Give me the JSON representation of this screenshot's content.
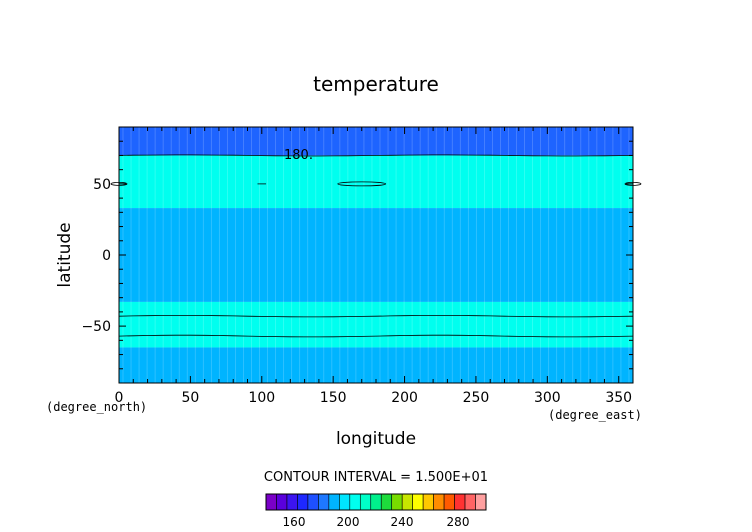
{
  "chart_data": {
    "type": "heatmap",
    "title": "temperature",
    "xlabel": "longitude",
    "ylabel": "latitude",
    "x_unit": "(degree_east)",
    "y_unit": "(degree_north)",
    "xlim": [
      0,
      360
    ],
    "ylim": [
      -90,
      90
    ],
    "x_ticks": [
      "0",
      "50",
      "100",
      "150",
      "200",
      "250",
      "300",
      "350"
    ],
    "y_ticks": [
      "50",
      "0",
      "-50"
    ],
    "bands": [
      {
        "lat_from": 70,
        "lat_to": 90,
        "color": "#1e64ff"
      },
      {
        "lat_from": 33,
        "lat_to": 70,
        "color": "#00ffef"
      },
      {
        "lat_from": -33,
        "lat_to": 33,
        "color": "#00b4ff"
      },
      {
        "lat_from": -65,
        "lat_to": -33,
        "color": "#00ffef"
      },
      {
        "lat_from": -90,
        "lat_to": -65,
        "color": "#00b4ff"
      }
    ],
    "contour_label": "180.",
    "contour_interval_text": "CONTOUR INTERVAL = 1.500E+01",
    "colorbar": {
      "colors": [
        "#7a00c8",
        "#5a00dc",
        "#3c14f0",
        "#1e28ff",
        "#1e50ff",
        "#1e78ff",
        "#00b4ff",
        "#00e6ff",
        "#00ffef",
        "#00ffc8",
        "#00f08c",
        "#1edc3c",
        "#78dc00",
        "#c8e600",
        "#ffff00",
        "#ffc800",
        "#ff8c00",
        "#ff5a00",
        "#ff3232",
        "#ff6464",
        "#ffa0a0"
      ],
      "tick_labels": [
        "160",
        "200",
        "240",
        "280"
      ]
    }
  }
}
